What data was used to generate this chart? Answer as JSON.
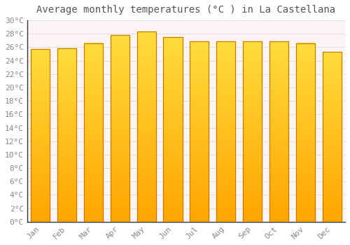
{
  "title": "Average monthly temperatures (°C ) in La Castellana",
  "months": [
    "Jan",
    "Feb",
    "Mar",
    "Apr",
    "May",
    "Jun",
    "Jul",
    "Aug",
    "Sep",
    "Oct",
    "Nov",
    "Dec"
  ],
  "temperatures": [
    25.7,
    25.8,
    26.6,
    27.8,
    28.3,
    27.5,
    26.9,
    26.9,
    26.9,
    26.9,
    26.6,
    25.3
  ],
  "bar_color_main": "#FFA500",
  "bar_color_highlight": "#FFD040",
  "bar_edge_color": "#CC7700",
  "background_color": "#ffffff",
  "plot_bg_color": "#fdf5f5",
  "grid_color": "#dddddd",
  "title_color": "#555555",
  "tick_label_color": "#888888",
  "axis_color": "#333333",
  "ylim_min": 0,
  "ylim_max": 30,
  "ytick_step": 2,
  "title_fontsize": 10,
  "tick_fontsize": 8,
  "font_family": "monospace"
}
